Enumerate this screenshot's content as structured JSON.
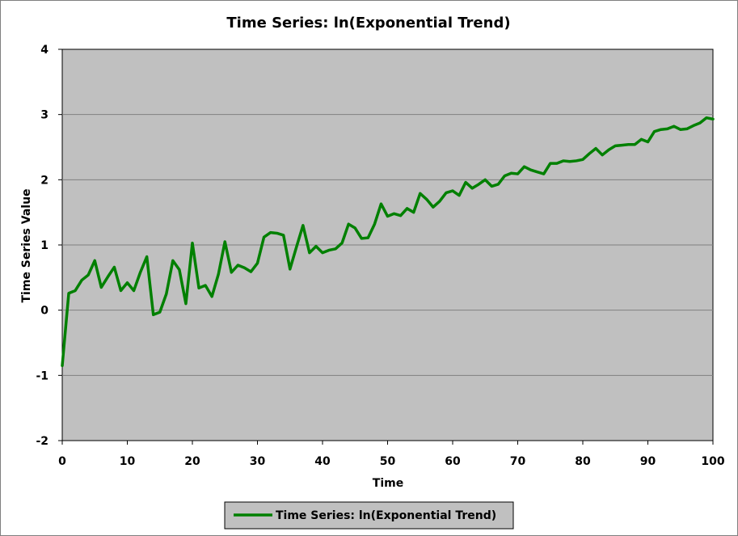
{
  "chart_data": {
    "type": "line",
    "title": "Time Series: ln(Exponential Trend)",
    "xlabel": "Time",
    "ylabel": "Time Series Value",
    "xlim": [
      0,
      100
    ],
    "ylim": [
      -2,
      4
    ],
    "xticks": [
      "0",
      "10",
      "20",
      "30",
      "40",
      "50",
      "60",
      "70",
      "80",
      "90",
      "100"
    ],
    "yticks": [
      "-2",
      "-1",
      "0",
      "1",
      "2",
      "3",
      "4"
    ],
    "grid": "horizontal",
    "legend_position": "bottom",
    "colors": {
      "plot_area": "#c0c0c0",
      "gridline": "#808080",
      "series": "#008000",
      "legend_box": "#c0c0c0"
    },
    "series": [
      {
        "name": "Time Series: ln(Exponential Trend)",
        "x": [
          0,
          1,
          2,
          3,
          4,
          5,
          6,
          7,
          8,
          9,
          10,
          11,
          12,
          13,
          14,
          15,
          16,
          17,
          18,
          19,
          20,
          21,
          22,
          23,
          24,
          25,
          26,
          27,
          28,
          29,
          30,
          31,
          32,
          33,
          34,
          35,
          36,
          37,
          38,
          39,
          40,
          41,
          42,
          43,
          44,
          45,
          46,
          47,
          48,
          49,
          50,
          51,
          52,
          53,
          54,
          55,
          56,
          57,
          58,
          59,
          60,
          61,
          62,
          63,
          64,
          65,
          66,
          67,
          68,
          69,
          70,
          71,
          72,
          73,
          74,
          75,
          76,
          77,
          78,
          79,
          80,
          81,
          82,
          83,
          84,
          85,
          86,
          87,
          88,
          89,
          90,
          91,
          92,
          93,
          94,
          95,
          96,
          97,
          98,
          99,
          100
        ],
        "y": [
          -0.85,
          0.26,
          0.3,
          0.46,
          0.54,
          0.76,
          0.35,
          0.51,
          0.66,
          0.3,
          0.42,
          0.3,
          0.58,
          0.82,
          -0.07,
          -0.03,
          0.25,
          0.76,
          0.62,
          0.1,
          1.03,
          0.34,
          0.38,
          0.21,
          0.55,
          1.05,
          0.58,
          0.69,
          0.65,
          0.59,
          0.72,
          1.12,
          1.19,
          1.18,
          1.15,
          0.63,
          0.97,
          1.3,
          0.88,
          0.98,
          0.88,
          0.92,
          0.94,
          1.03,
          1.32,
          1.26,
          1.1,
          1.11,
          1.32,
          1.63,
          1.44,
          1.48,
          1.45,
          1.56,
          1.5,
          1.79,
          1.7,
          1.58,
          1.67,
          1.8,
          1.83,
          1.76,
          1.96,
          1.87,
          1.93,
          2.0,
          1.9,
          1.93,
          2.06,
          2.1,
          2.09,
          2.2,
          2.15,
          2.12,
          2.09,
          2.25,
          2.25,
          2.29,
          2.28,
          2.29,
          2.31,
          2.4,
          2.48,
          2.38,
          2.46,
          2.52,
          2.53,
          2.54,
          2.54,
          2.62,
          2.58,
          2.74,
          2.77,
          2.78,
          2.82,
          2.77,
          2.78,
          2.83,
          2.87,
          2.95,
          2.93
        ]
      }
    ]
  }
}
